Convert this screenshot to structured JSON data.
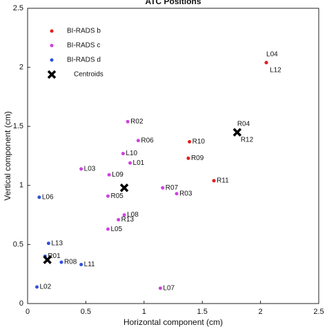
{
  "chart_data": {
    "type": "scatter",
    "title": "ATC Positions",
    "xlabel": "Horizontal component (cm)",
    "ylabel": "Vertical component (cm)",
    "xlim": [
      0,
      2.5
    ],
    "ylim": [
      0,
      2.5
    ],
    "xticks": [
      0,
      0.5,
      1,
      1.5,
      2,
      2.5
    ],
    "yticks": [
      0,
      0.5,
      1,
      1.5,
      2,
      2.5
    ],
    "legend": "upper left",
    "series": [
      {
        "name": "BI-RADS b",
        "color": "#e02020",
        "marker": "dot",
        "x": [
          2.05,
          2.05,
          1.8,
          1.8,
          1.39,
          1.38,
          1.6
        ],
        "values": [
          2.04,
          2.04,
          1.45,
          1.45,
          1.37,
          1.23,
          1.04
        ],
        "labels": [
          "L04",
          "L12",
          "R04",
          "R12",
          "R10",
          "R09",
          "R11"
        ]
      },
      {
        "name": "BI-RADS c",
        "color": "#d040e0",
        "marker": "dot",
        "x": [
          0.86,
          0.95,
          0.82,
          0.88,
          0.46,
          0.7,
          1.16,
          1.28,
          0.69,
          0.83,
          0.78,
          0.69,
          1.14
        ],
        "values": [
          1.54,
          1.38,
          1.27,
          1.19,
          1.14,
          1.09,
          0.98,
          0.93,
          0.91,
          0.75,
          0.71,
          0.63,
          0.13
        ],
        "labels": [
          "R02",
          "R06",
          "L10",
          "L01",
          "L03",
          "L09",
          "R07",
          "R03",
          "R05",
          "L08",
          "R13",
          "L05",
          "L07"
        ]
      },
      {
        "name": "BI-RADS d",
        "color": "#3050e0",
        "marker": "dot",
        "x": [
          0.1,
          0.18,
          0.15,
          0.29,
          0.46,
          0.08
        ],
        "values": [
          0.9,
          0.51,
          0.4,
          0.35,
          0.33,
          0.14
        ],
        "labels": [
          "L06",
          "L13",
          "R01",
          "R08",
          "L11",
          "L02"
        ]
      },
      {
        "name": "Centroids",
        "color": "#000000",
        "marker": "x",
        "x": [
          0.83,
          1.8,
          0.17
        ],
        "values": [
          0.98,
          1.45,
          0.37
        ]
      }
    ]
  }
}
